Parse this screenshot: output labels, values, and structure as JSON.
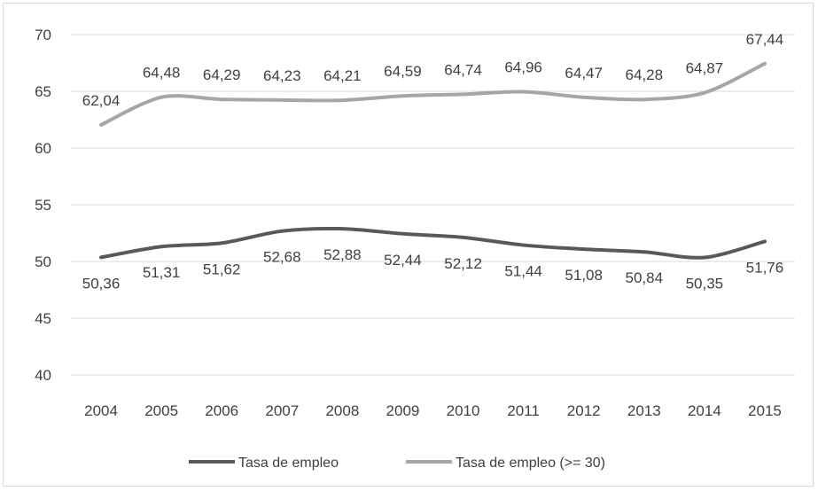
{
  "chart_data": {
    "type": "line",
    "title": "",
    "xlabel": "",
    "ylabel": "",
    "categories": [
      "2004",
      "2005",
      "2006",
      "2007",
      "2008",
      "2009",
      "2010",
      "2011",
      "2012",
      "2013",
      "2014",
      "2015"
    ],
    "ylim": [
      40,
      70
    ],
    "yticks": [
      40,
      45,
      50,
      55,
      60,
      65,
      70
    ],
    "grid": true,
    "legend_position": "bottom",
    "series": [
      {
        "name": "Tasa de empleo",
        "color": "#595959",
        "values": [
          50.36,
          51.31,
          51.62,
          52.68,
          52.88,
          52.44,
          52.12,
          51.44,
          51.08,
          50.84,
          50.35,
          51.76
        ],
        "labels": [
          "50,36",
          "51,31",
          "51,62",
          "52,68",
          "52,88",
          "52,44",
          "52,12",
          "51,44",
          "51,08",
          "50,84",
          "50,35",
          "51,76"
        ],
        "label_position": "below"
      },
      {
        "name": "Tasa de empleo (>= 30)",
        "color": "#a6a6a6",
        "values": [
          62.04,
          64.48,
          64.29,
          64.23,
          64.21,
          64.59,
          64.74,
          64.96,
          64.47,
          64.28,
          64.87,
          67.44
        ],
        "labels": [
          "62,04",
          "64,48",
          "64,29",
          "64,23",
          "64,21",
          "64,59",
          "64,74",
          "64,96",
          "64,47",
          "64,28",
          "64,87",
          "67,44"
        ],
        "label_position": "above"
      }
    ]
  }
}
